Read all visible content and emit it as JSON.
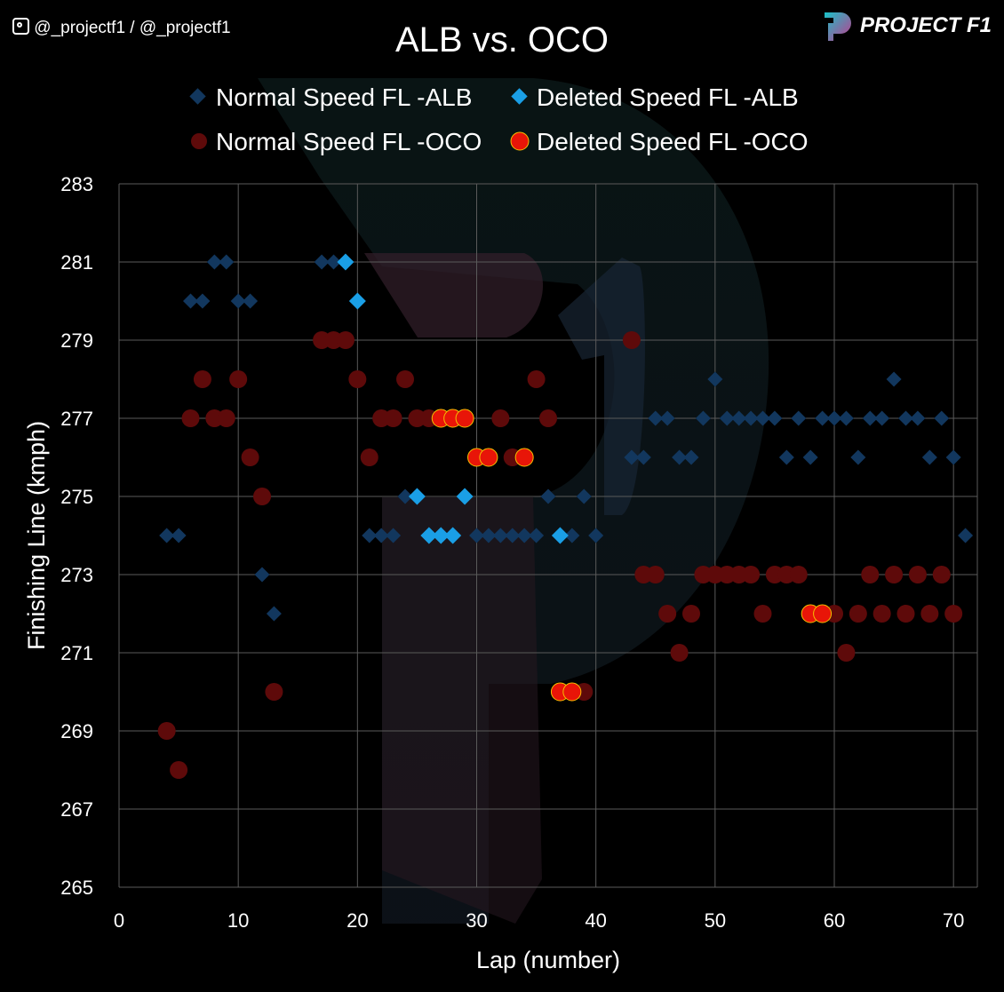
{
  "header": {
    "social": "@_projectf1 / @_projectf1",
    "brand": "PROJECT F1"
  },
  "chart_data": {
    "type": "scatter",
    "title": "ALB vs. OCO",
    "xlabel": "Lap (number)",
    "ylabel": "Finishing Line (kmph)",
    "xlim": [
      0,
      72
    ],
    "ylim": [
      265,
      283
    ],
    "xticks": [
      0,
      10,
      20,
      30,
      40,
      50,
      60,
      70
    ],
    "yticks": [
      265,
      267,
      269,
      271,
      273,
      275,
      277,
      279,
      281,
      283
    ],
    "grid": true,
    "legend_position": "top",
    "series": [
      {
        "name": "Normal Speed FL -ALB",
        "marker": "diamond",
        "color": "#12375e",
        "x": [
          4,
          5,
          6,
          7,
          8,
          9,
          10,
          11,
          12,
          13,
          17,
          18,
          21,
          22,
          23,
          24,
          30,
          31,
          32,
          33,
          34,
          35,
          36,
          38,
          39,
          40,
          43,
          44,
          45,
          46,
          47,
          48,
          49,
          50,
          51,
          52,
          53,
          54,
          55,
          56,
          57,
          58,
          59,
          60,
          61,
          62,
          63,
          64,
          65,
          66,
          67,
          68,
          69,
          70,
          71
        ],
        "y": [
          274,
          274,
          280,
          280,
          281,
          281,
          280,
          280,
          273,
          272,
          281,
          281,
          274,
          274,
          274,
          275,
          274,
          274,
          274,
          274,
          274,
          274,
          275,
          274,
          275,
          274,
          276,
          276,
          277,
          277,
          276,
          276,
          277,
          278,
          277,
          277,
          277,
          277,
          277,
          276,
          277,
          276,
          277,
          277,
          277,
          276,
          277,
          277,
          278,
          277,
          277,
          276,
          277,
          276,
          274
        ]
      },
      {
        "name": "Deleted Speed FL -ALB",
        "marker": "diamond",
        "color": "#1a9fe6",
        "x": [
          19,
          20,
          25,
          26,
          27,
          28,
          29,
          37
        ],
        "y": [
          281,
          280,
          275,
          274,
          274,
          274,
          275,
          274
        ]
      },
      {
        "name": "Normal Speed FL -OCO",
        "marker": "circle",
        "color": "#5e0a0a",
        "x": [
          4,
          5,
          6,
          7,
          8,
          9,
          10,
          11,
          12,
          13,
          17,
          18,
          19,
          20,
          21,
          22,
          23,
          24,
          25,
          26,
          32,
          33,
          35,
          36,
          39,
          43,
          44,
          45,
          46,
          47,
          48,
          49,
          50,
          51,
          52,
          53,
          54,
          55,
          56,
          57,
          60,
          61,
          62,
          63,
          64,
          65,
          66,
          67,
          68,
          69,
          70
        ],
        "y": [
          269,
          268,
          277,
          278,
          277,
          277,
          278,
          276,
          275,
          270,
          279,
          279,
          279,
          278,
          276,
          277,
          277,
          278,
          277,
          277,
          277,
          276,
          278,
          277,
          270,
          279,
          273,
          273,
          272,
          271,
          272,
          273,
          273,
          273,
          273,
          273,
          272,
          273,
          273,
          273,
          272,
          271,
          272,
          273,
          272,
          273,
          272,
          273,
          272,
          273,
          272
        ]
      },
      {
        "name": "Deleted Speed FL -OCO",
        "marker": "circle",
        "color": "#e81508",
        "x": [
          27,
          28,
          29,
          30,
          31,
          34,
          37,
          38,
          58,
          59
        ],
        "y": [
          277,
          277,
          277,
          276,
          276,
          276,
          270,
          270,
          272,
          272
        ]
      }
    ]
  }
}
